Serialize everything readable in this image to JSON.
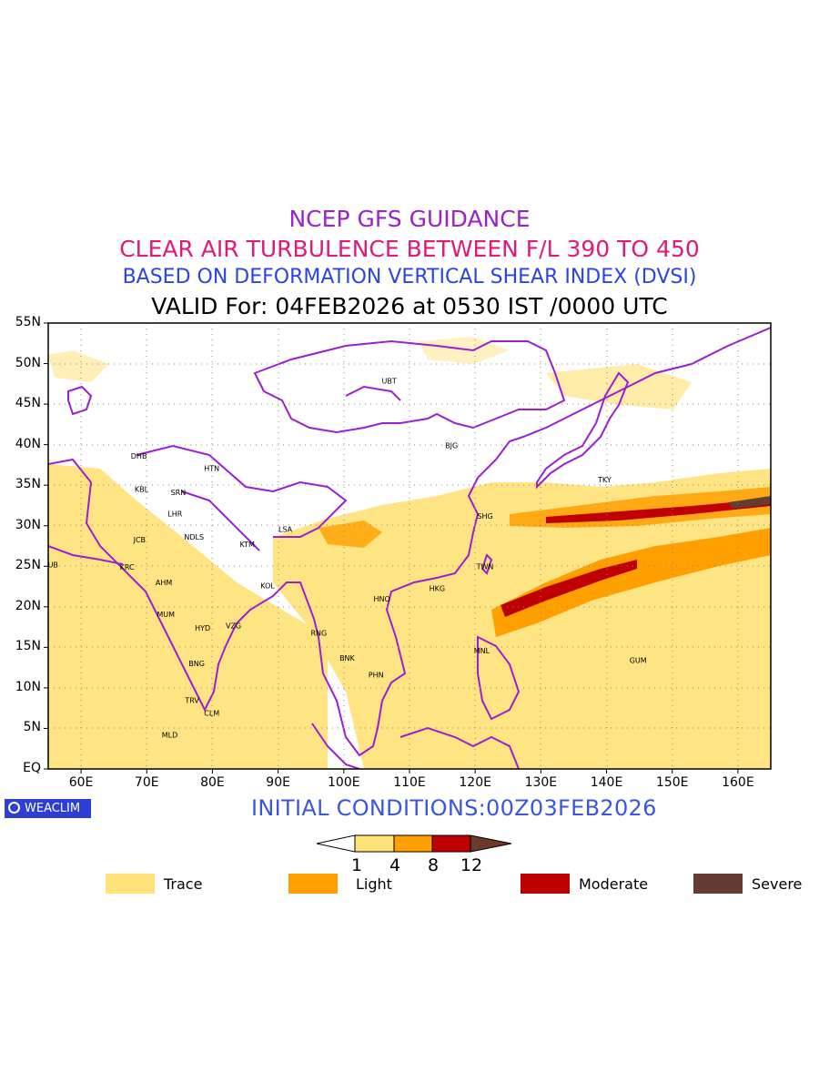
{
  "titles": {
    "line1": "NCEP GFS GUIDANCE",
    "line1_color": "#9b22c8",
    "line2": "CLEAR AIR TURBULENCE BETWEEN F/L 390 TO 450",
    "line2_color": "#e0197a",
    "line3": "BASED ON DEFORMATION VERTICAL SHEAR INDEX (DVSI)",
    "line3_color": "#2b44e6",
    "line4": "VALID For: 04FEB2026 at 0530 IST /0000 UTC",
    "line4_color": "#000000"
  },
  "map": {
    "lat_labels": [
      "55N",
      "50N",
      "45N",
      "40N",
      "35N",
      "30N",
      "25N",
      "20N",
      "15N",
      "10N",
      "5N",
      "EQ"
    ],
    "lon_labels": [
      "60E",
      "70E",
      "80E",
      "90E",
      "100E",
      "110E",
      "120E",
      "130E",
      "140E",
      "150E",
      "160E"
    ],
    "lon_range": [
      55,
      165
    ],
    "lat_range": [
      0,
      55
    ],
    "grid": "dotted",
    "coast_color": "#9b1fd1",
    "cities": [
      {
        "code": "UBT",
        "lon": 106.9,
        "lat": 47.9
      },
      {
        "code": "BJG",
        "lon": 116.4,
        "lat": 39.9
      },
      {
        "code": "TKY",
        "lon": 139.7,
        "lat": 35.7
      },
      {
        "code": "SHG",
        "lon": 121.5,
        "lat": 31.2
      },
      {
        "code": "TWN",
        "lon": 121.5,
        "lat": 25.0
      },
      {
        "code": "HKG",
        "lon": 114.2,
        "lat": 22.3
      },
      {
        "code": "HNO",
        "lon": 105.8,
        "lat": 21.0
      },
      {
        "code": "MNL",
        "lon": 121.0,
        "lat": 14.6
      },
      {
        "code": "GUM",
        "lon": 144.8,
        "lat": 13.4
      },
      {
        "code": "BNK",
        "lon": 100.5,
        "lat": 13.7
      },
      {
        "code": "PHN",
        "lon": 104.9,
        "lat": 11.6
      },
      {
        "code": "RNG",
        "lon": 96.2,
        "lat": 16.8
      },
      {
        "code": "LSA",
        "lon": 91.1,
        "lat": 29.6
      },
      {
        "code": "KTM",
        "lon": 85.3,
        "lat": 27.7
      },
      {
        "code": "KOL",
        "lon": 88.4,
        "lat": 22.6
      },
      {
        "code": "HTN",
        "lon": 79.9,
        "lat": 37.1
      },
      {
        "code": "DHB",
        "lon": 68.8,
        "lat": 38.6
      },
      {
        "code": "KBL",
        "lon": 69.2,
        "lat": 34.5
      },
      {
        "code": "SRN",
        "lon": 74.8,
        "lat": 34.1
      },
      {
        "code": "LHR",
        "lon": 74.3,
        "lat": 31.5
      },
      {
        "code": "NDLS",
        "lon": 77.2,
        "lat": 28.6
      },
      {
        "code": "JCB",
        "lon": 68.9,
        "lat": 28.3
      },
      {
        "code": "KRC",
        "lon": 67.0,
        "lat": 24.9
      },
      {
        "code": "DUB",
        "lon": 55.3,
        "lat": 25.2
      },
      {
        "code": "AHM",
        "lon": 72.6,
        "lat": 23.0
      },
      {
        "code": "MUM",
        "lon": 72.9,
        "lat": 19.1
      },
      {
        "code": "HYD",
        "lon": 78.5,
        "lat": 17.4
      },
      {
        "code": "VZG",
        "lon": 83.2,
        "lat": 17.7
      },
      {
        "code": "BNG",
        "lon": 77.6,
        "lat": 13.0
      },
      {
        "code": "TRV",
        "lon": 76.9,
        "lat": 8.5
      },
      {
        "code": "CLM",
        "lon": 79.9,
        "lat": 6.9
      },
      {
        "code": "MLD",
        "lon": 73.5,
        "lat": 4.2
      }
    ]
  },
  "branding": {
    "logo_text": "WEACLIM",
    "initial_conditions": "INITIAL CONDITIONS:00Z03FEB2026"
  },
  "colorbar": {
    "ticks": [
      "1",
      "4",
      "8",
      "12"
    ],
    "colors": [
      "#ffffff",
      "#ffe27a",
      "#ffa000",
      "#c00000",
      "#6b3a2a"
    ]
  },
  "legend": [
    {
      "label": "Trace",
      "color": "#ffe27a"
    },
    {
      "label": "Light",
      "color": "#ffa000"
    },
    {
      "label": "Moderate",
      "color": "#c00000"
    },
    {
      "label": "Severe",
      "color": "#643c32"
    }
  ]
}
